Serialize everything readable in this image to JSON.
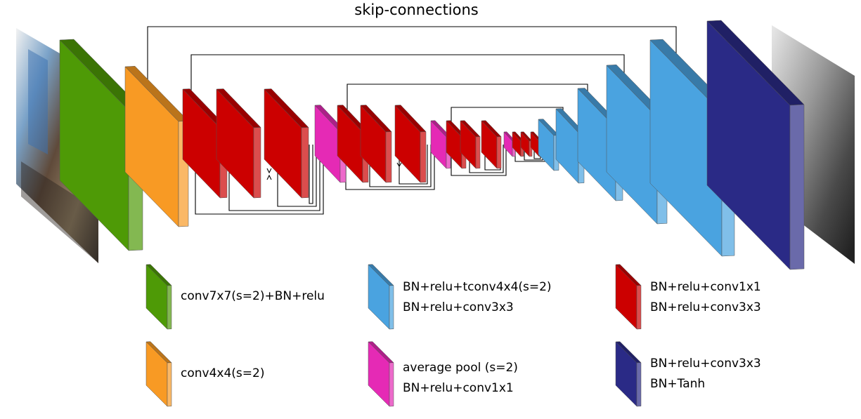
{
  "title": "skip-connections",
  "colors": {
    "green": "#4e9a06",
    "orange": "#f89a24",
    "red": "#cc0000",
    "blue": "#4aa3e0",
    "pink": "#e52ab5",
    "navy": "#2a2a86",
    "input_image": "classroom-photo",
    "output_image": "depth-map"
  },
  "legend": {
    "green": {
      "lines": [
        "conv7x7(s=2)+BN+relu"
      ]
    },
    "orange": {
      "lines": [
        "conv4x4(s=2)"
      ]
    },
    "blue": {
      "lines": [
        "BN+relu+tconv4x4(s=2)",
        "BN+relu+conv3x3"
      ]
    },
    "pink": {
      "lines": [
        "average pool (s=2)",
        "BN+relu+conv1x1"
      ]
    },
    "red": {
      "lines": [
        "BN+relu+conv1x1",
        "BN+relu+conv3x3"
      ]
    },
    "navy": {
      "lines": [
        "BN+relu+conv3x3",
        "BN+Tanh"
      ]
    }
  }
}
